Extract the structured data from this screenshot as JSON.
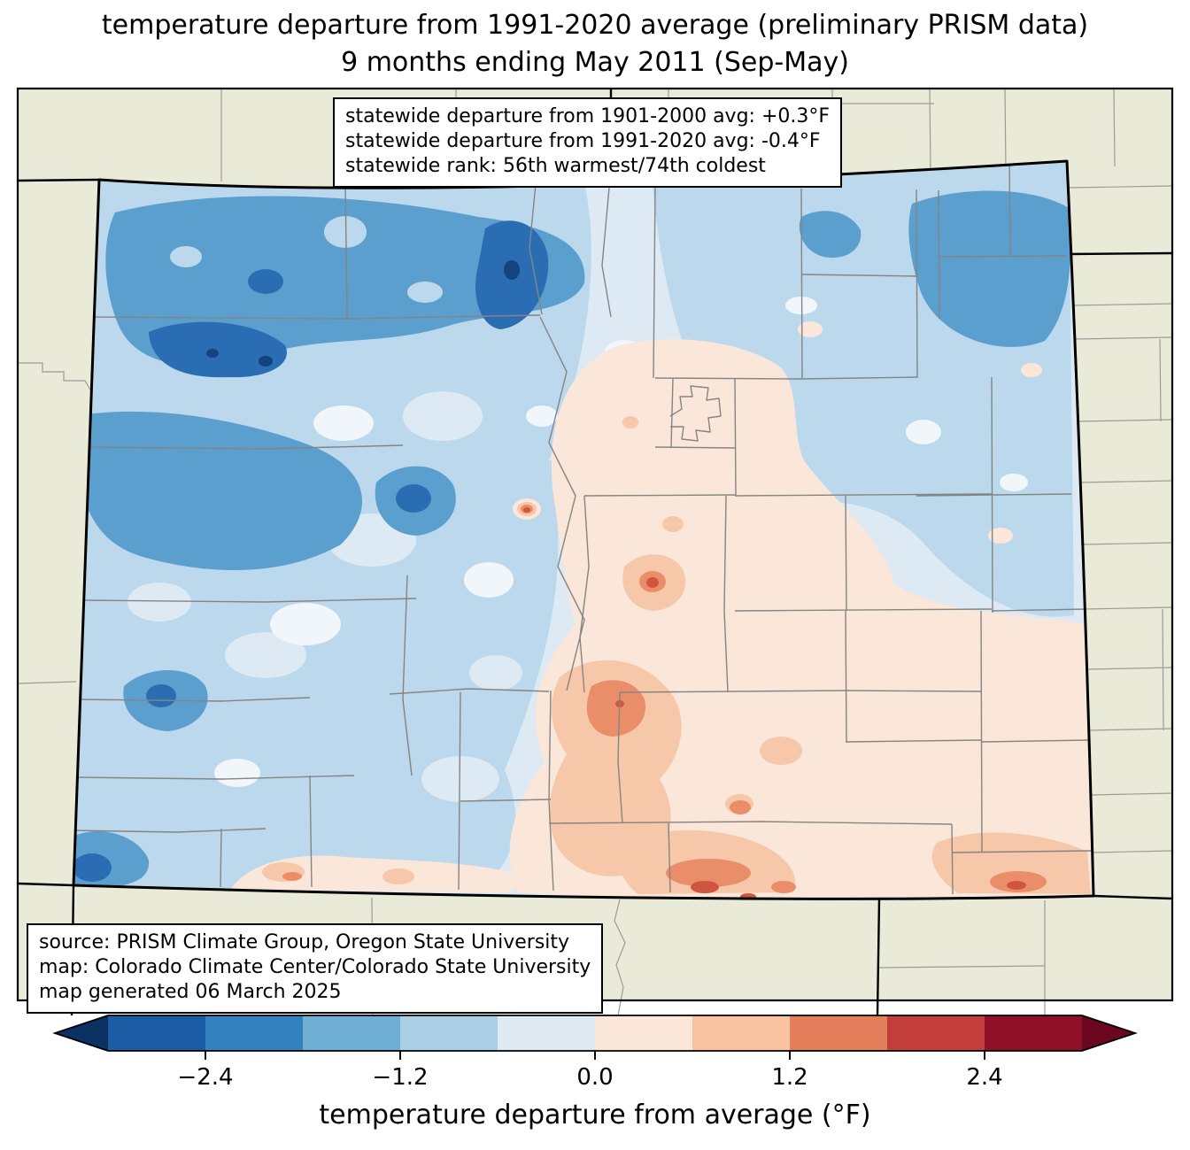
{
  "title": {
    "line1": "temperature departure from 1991-2020 average (preliminary PRISM data)",
    "line2": "9 months ending May 2011 (Sep-May)"
  },
  "stats_box": {
    "lines": [
      "statewide departure from 1901-2000 avg: +0.3°F",
      "statewide departure from 1991-2020 avg: -0.4°F",
      "statewide rank: 56th warmest/74th coldest"
    ]
  },
  "source_box": {
    "lines": [
      "source: PRISM Climate Group, Oregon State University",
      "map: Colorado Climate Center/Colorado State University",
      "map generated 06 March 2025"
    ]
  },
  "colorbar": {
    "label": "temperature departure from average (°F)",
    "tick_labels": [
      "−2.4",
      "−1.2",
      "0.0",
      "1.2",
      "2.4"
    ],
    "tick_values": [
      -2.4,
      -1.2,
      0.0,
      1.2,
      2.4
    ],
    "value_min": -3.0,
    "value_max": 3.0,
    "boundaries": [
      -3.0,
      -2.4,
      -1.8,
      -1.2,
      -0.6,
      0.0,
      0.6,
      1.2,
      1.8,
      2.4,
      3.0
    ],
    "segment_colors": [
      "#1b5ea6",
      "#3381bd",
      "#70afd4",
      "#abd0e6",
      "#dfeaf3",
      "#fbe7da",
      "#f8c3a3",
      "#e3805b",
      "#c33d3d",
      "#8e1127"
    ],
    "under_arrow_color": "#0a3161",
    "over_arrow_color": "#6d0620"
  },
  "map_colors": {
    "outside_background": "#eaead8",
    "state_border": "#000000",
    "county_line": "#848484",
    "neighbor_county_line": "#9b9b9b",
    "base_fill": "#dde9f3",
    "cool_light": "#bcd8ec",
    "cool_medium": "#5b9fce",
    "cool_dark": "#2b6db3",
    "cool_darkest": "#14437f",
    "neutral_patch": "#f1f6fa",
    "warm_pale": "#fbe7da",
    "warm_light": "#f6c7a9",
    "warm_medium": "#ea8e69",
    "warm_dark": "#d05540"
  }
}
